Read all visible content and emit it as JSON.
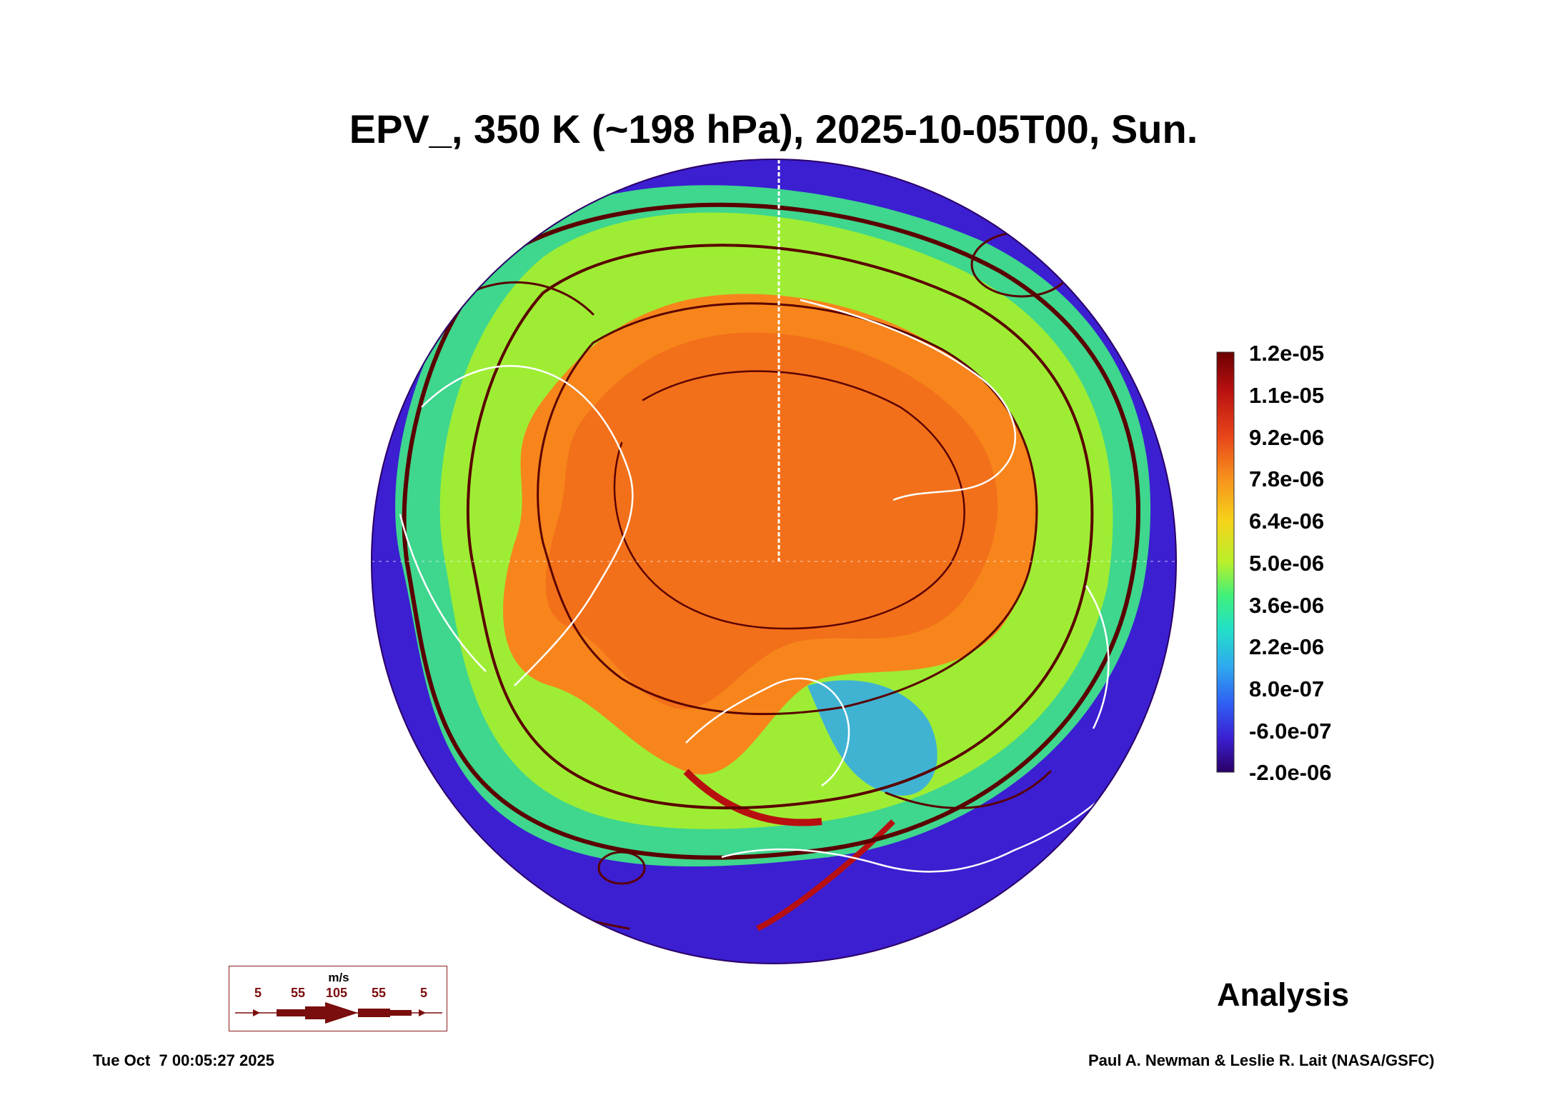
{
  "title": "EPV_, 350 K (~198 hPa), 2025-10-05T00, Sun.",
  "colorbar": {
    "labels": [
      "1.2e-05",
      "1.1e-05",
      "9.2e-06",
      "7.8e-06",
      "6.4e-06",
      "5.0e-06",
      "3.6e-06",
      "2.2e-06",
      "8.0e-07",
      "-6.0e-07",
      "-2.0e-06"
    ],
    "colors": [
      "#2a0066",
      "#3b1fd1",
      "#2f5cf2",
      "#2fa8f0",
      "#22e0c8",
      "#3ff07a",
      "#b8f02a",
      "#f6d21a",
      "#f7911c",
      "#e8451a",
      "#b81010",
      "#6b0000"
    ]
  },
  "wind_legend": {
    "unit": "m/s",
    "speeds": [
      "5",
      "55",
      "105",
      "55",
      "5"
    ],
    "color": "#7a0d0d"
  },
  "analysis_label": "Analysis",
  "timestamp": "Tue Oct  7 00:05:27 2025",
  "credit": "Paul A. Newman & Leslie R. Lait (NASA/GSFC)",
  "colors": {
    "ocean_low": "#3b1fd1",
    "midlat": "#22e0c8",
    "vortex": "#f7911c",
    "streamline": "#5a0000",
    "coastline": "#ffffff"
  }
}
